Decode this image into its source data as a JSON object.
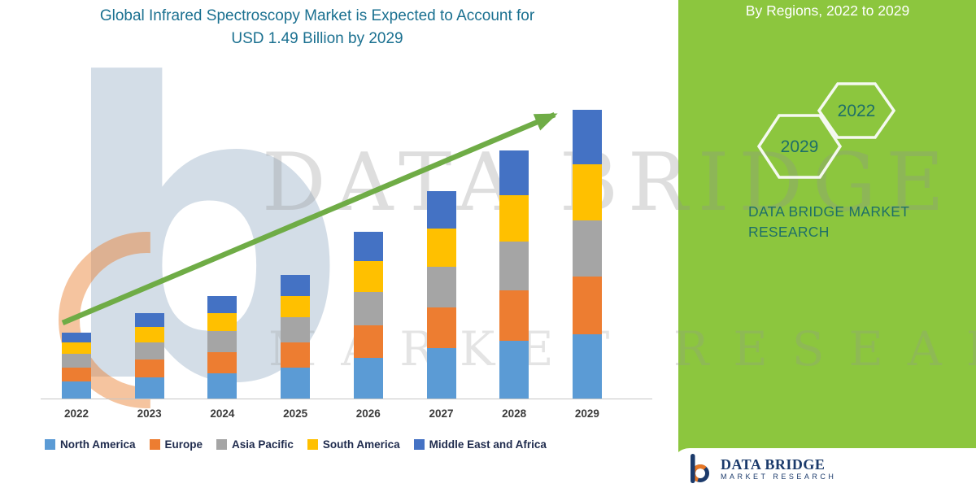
{
  "title": {
    "line1": "Global Infrared Spectroscopy Market is Expected to Account for",
    "line2": "USD 1.49 Billion by 2029"
  },
  "side_panel": {
    "title": "By Regions, 2022 to 2029",
    "hexagon_years": [
      "2029",
      "2022"
    ],
    "brand_line1": "DATA BRIDGE MARKET",
    "brand_line2": "RESEARCH"
  },
  "watermark": {
    "letter": "b",
    "brand": "DATA BRIDGE",
    "sub": "MARKET RESEARCH"
  },
  "footer_logo": {
    "name": "DATA BRIDGE",
    "sub": "MARKET RESEARCH"
  },
  "colors": {
    "panel_green": "#8CC63E",
    "arrow_green": "#6FAC46",
    "title_teal": "#1A7090",
    "brand_teal": "#1E6F68",
    "legend_text": "#1F2B4D"
  },
  "chart_data": {
    "type": "bar",
    "stacked": true,
    "title": "Global Infrared Spectroscopy Market is Expected to Account for USD 1.49 Billion by 2029",
    "unit": "USD Billion",
    "categories": [
      "2022",
      "2023",
      "2024",
      "2025",
      "2026",
      "2027",
      "2028",
      "2029"
    ],
    "series": [
      {
        "name": "North America",
        "color": "#5B9BD5",
        "values": [
          0.09,
          0.11,
          0.13,
          0.16,
          0.21,
          0.26,
          0.3,
          0.33
        ]
      },
      {
        "name": "Europe",
        "color": "#ED7D31",
        "values": [
          0.07,
          0.09,
          0.11,
          0.13,
          0.17,
          0.21,
          0.26,
          0.3
        ]
      },
      {
        "name": "Asia Pacific",
        "color": "#A5A5A5",
        "values": [
          0.07,
          0.09,
          0.11,
          0.13,
          0.17,
          0.21,
          0.25,
          0.29
        ]
      },
      {
        "name": "South America",
        "color": "#FFC000",
        "values": [
          0.06,
          0.08,
          0.09,
          0.11,
          0.16,
          0.2,
          0.24,
          0.29
        ]
      },
      {
        "name": "Middle East and Africa",
        "color": "#4472C4",
        "values": [
          0.05,
          0.07,
          0.09,
          0.11,
          0.15,
          0.19,
          0.23,
          0.28
        ]
      }
    ],
    "totals": [
      0.34,
      0.44,
      0.53,
      0.64,
      0.86,
      1.07,
      1.28,
      1.49
    ],
    "ylim": [
      0,
      1.6
    ],
    "y_axis_visible": false,
    "gridlines": false,
    "legend_position": "bottom",
    "annotations": [
      {
        "type": "arrow",
        "direction": "up",
        "meaning": "growth trend 2022 to 2029"
      }
    ]
  }
}
